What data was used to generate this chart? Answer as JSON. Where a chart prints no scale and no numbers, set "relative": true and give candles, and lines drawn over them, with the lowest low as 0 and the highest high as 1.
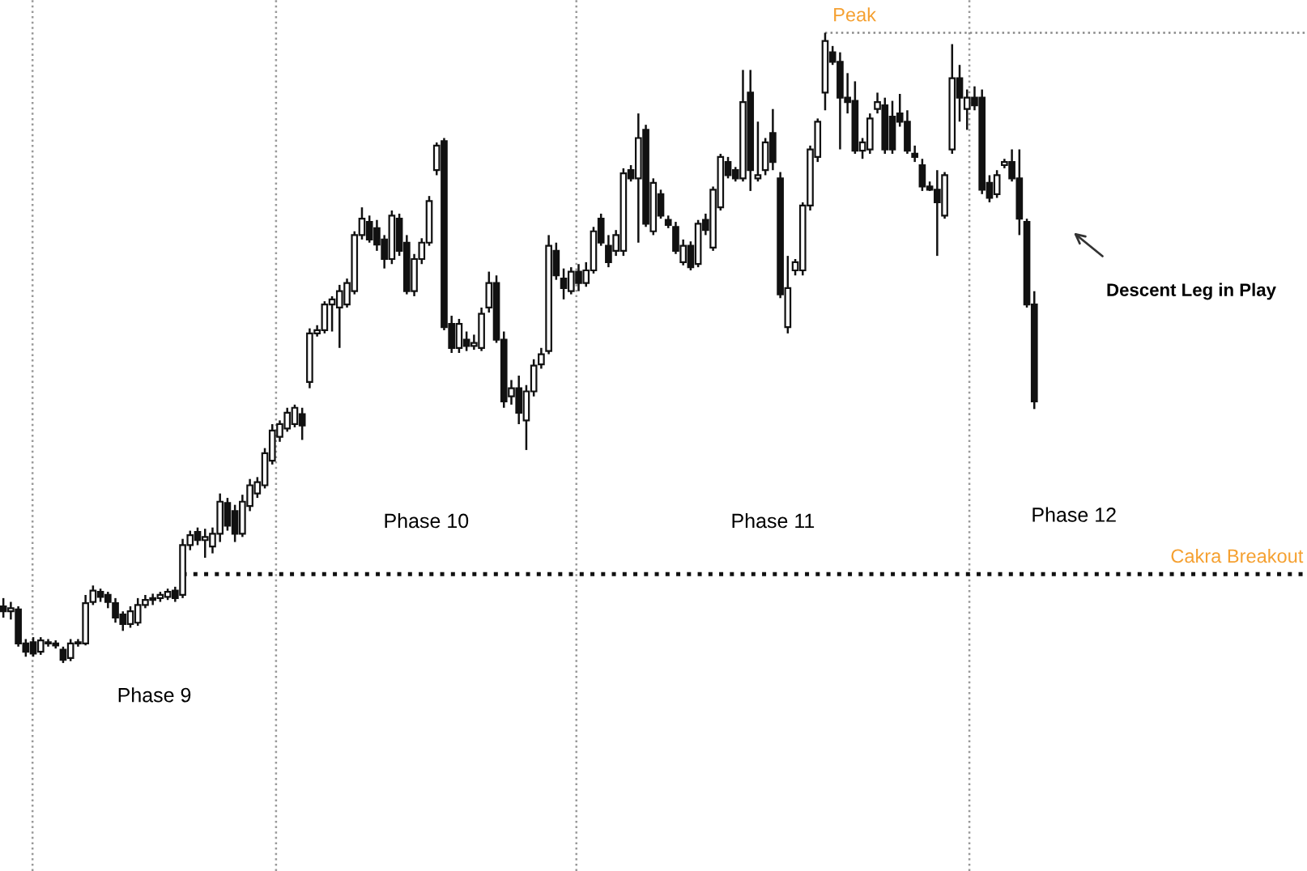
{
  "chart_data": {
    "type": "candlestick",
    "relative": true,
    "tick_labels": false,
    "grid": false,
    "legend": false,
    "categories": [
      null,
      null,
      null,
      null,
      null,
      null,
      null,
      null,
      null,
      null,
      null,
      null,
      null,
      null,
      null,
      null,
      null,
      null,
      null,
      null,
      null,
      null,
      null,
      null,
      null,
      null,
      null,
      null,
      null,
      null,
      null,
      null,
      null,
      null,
      null,
      null,
      null,
      null,
      null,
      null,
      null,
      null,
      null,
      null,
      null,
      null,
      null,
      null,
      null,
      null,
      null,
      null,
      null,
      null,
      null,
      null,
      null,
      null,
      null,
      null,
      null,
      null,
      null,
      null,
      null,
      null,
      null,
      null,
      null,
      null,
      null,
      null,
      null,
      null,
      null,
      null,
      null,
      null,
      null,
      null,
      null,
      null,
      null,
      null,
      null,
      null,
      null,
      null,
      null,
      null,
      null,
      null,
      null,
      null,
      null,
      null,
      null,
      null,
      null,
      null,
      null,
      null,
      null,
      null,
      null,
      null,
      null,
      null,
      null,
      null,
      null,
      null,
      null,
      null,
      null,
      null,
      null,
      null,
      null,
      null,
      null,
      null,
      null,
      null,
      null,
      null,
      null,
      null,
      null,
      null,
      null,
      null,
      null,
      null,
      null,
      null,
      null,
      null,
      null
    ],
    "ohlc": [
      [
        0.09,
        0.103,
        0.072,
        0.082
      ],
      [
        0.082,
        0.097,
        0.069,
        0.087
      ],
      [
        0.085,
        0.09,
        0.026,
        0.031
      ],
      [
        0.031,
        0.038,
        0.01,
        0.018
      ],
      [
        0.033,
        0.041,
        0.01,
        0.015
      ],
      [
        0.018,
        0.041,
        0.013,
        0.036
      ],
      [
        0.033,
        0.038,
        0.026,
        0.031
      ],
      [
        0.031,
        0.036,
        0.023,
        0.028
      ],
      [
        0.021,
        0.026,
        0.0,
        0.005
      ],
      [
        0.008,
        0.038,
        0.003,
        0.031
      ],
      [
        0.031,
        0.038,
        0.026,
        0.033
      ],
      [
        0.031,
        0.108,
        0.028,
        0.095
      ],
      [
        0.097,
        0.123,
        0.092,
        0.115
      ],
      [
        0.113,
        0.118,
        0.097,
        0.105
      ],
      [
        0.108,
        0.113,
        0.087,
        0.097
      ],
      [
        0.095,
        0.103,
        0.064,
        0.072
      ],
      [
        0.077,
        0.082,
        0.051,
        0.062
      ],
      [
        0.062,
        0.09,
        0.056,
        0.082
      ],
      [
        0.064,
        0.103,
        0.059,
        0.092
      ],
      [
        0.092,
        0.108,
        0.087,
        0.1
      ],
      [
        0.1,
        0.11,
        0.092,
        0.103
      ],
      [
        0.103,
        0.113,
        0.097,
        0.108
      ],
      [
        0.105,
        0.118,
        0.1,
        0.113
      ],
      [
        0.115,
        0.121,
        0.097,
        0.103
      ],
      [
        0.108,
        0.197,
        0.103,
        0.187
      ],
      [
        0.187,
        0.21,
        0.179,
        0.203
      ],
      [
        0.208,
        0.215,
        0.187,
        0.195
      ],
      [
        0.195,
        0.213,
        0.167,
        0.2
      ],
      [
        0.185,
        0.215,
        0.174,
        0.205
      ],
      [
        0.205,
        0.269,
        0.192,
        0.256
      ],
      [
        0.254,
        0.262,
        0.21,
        0.218
      ],
      [
        0.241,
        0.251,
        0.192,
        0.205
      ],
      [
        0.205,
        0.267,
        0.2,
        0.256
      ],
      [
        0.249,
        0.292,
        0.241,
        0.282
      ],
      [
        0.269,
        0.295,
        0.262,
        0.287
      ],
      [
        0.282,
        0.341,
        0.277,
        0.333
      ],
      [
        0.321,
        0.379,
        0.315,
        0.369
      ],
      [
        0.359,
        0.385,
        0.351,
        0.379
      ],
      [
        0.372,
        0.405,
        0.367,
        0.397
      ],
      [
        0.379,
        0.41,
        0.374,
        0.405
      ],
      [
        0.395,
        0.405,
        0.354,
        0.377
      ],
      [
        0.446,
        0.531,
        0.436,
        0.523
      ],
      [
        0.523,
        0.536,
        0.518,
        0.528
      ],
      [
        0.528,
        0.574,
        0.523,
        0.569
      ],
      [
        0.569,
        0.582,
        0.526,
        0.577
      ],
      [
        0.564,
        0.6,
        0.5,
        0.59
      ],
      [
        0.569,
        0.61,
        0.564,
        0.603
      ],
      [
        0.59,
        0.685,
        0.585,
        0.679
      ],
      [
        0.679,
        0.723,
        0.672,
        0.705
      ],
      [
        0.7,
        0.71,
        0.667,
        0.672
      ],
      [
        0.69,
        0.703,
        0.654,
        0.664
      ],
      [
        0.672,
        0.679,
        0.626,
        0.641
      ],
      [
        0.641,
        0.718,
        0.633,
        0.71
      ],
      [
        0.705,
        0.713,
        0.646,
        0.654
      ],
      [
        0.667,
        0.679,
        0.585,
        0.59
      ],
      [
        0.59,
        0.649,
        0.582,
        0.641
      ],
      [
        0.641,
        0.674,
        0.633,
        0.667
      ],
      [
        0.667,
        0.741,
        0.662,
        0.733
      ],
      [
        0.782,
        0.826,
        0.774,
        0.821
      ],
      [
        0.828,
        0.833,
        0.528,
        0.533
      ],
      [
        0.538,
        0.551,
        0.492,
        0.5
      ],
      [
        0.5,
        0.546,
        0.492,
        0.538
      ],
      [
        0.513,
        0.526,
        0.495,
        0.503
      ],
      [
        0.503,
        0.521,
        0.497,
        0.508
      ],
      [
        0.5,
        0.564,
        0.495,
        0.554
      ],
      [
        0.564,
        0.621,
        0.556,
        0.603
      ],
      [
        0.603,
        0.615,
        0.508,
        0.513
      ],
      [
        0.513,
        0.526,
        0.405,
        0.415
      ],
      [
        0.423,
        0.449,
        0.41,
        0.436
      ],
      [
        0.436,
        0.456,
        0.379,
        0.397
      ],
      [
        0.385,
        0.441,
        0.338,
        0.431
      ],
      [
        0.431,
        0.482,
        0.423,
        0.472
      ],
      [
        0.474,
        0.5,
        0.467,
        0.49
      ],
      [
        0.495,
        0.679,
        0.49,
        0.662
      ],
      [
        0.654,
        0.667,
        0.608,
        0.615
      ],
      [
        0.61,
        0.626,
        0.577,
        0.595
      ],
      [
        0.59,
        0.628,
        0.585,
        0.621
      ],
      [
        0.621,
        0.633,
        0.59,
        0.603
      ],
      [
        0.603,
        0.636,
        0.597,
        0.623
      ],
      [
        0.623,
        0.692,
        0.618,
        0.685
      ],
      [
        0.705,
        0.713,
        0.662,
        0.667
      ],
      [
        0.662,
        0.679,
        0.628,
        0.636
      ],
      [
        0.654,
        0.687,
        0.646,
        0.679
      ],
      [
        0.654,
        0.785,
        0.646,
        0.777
      ],
      [
        0.782,
        0.79,
        0.764,
        0.769
      ],
      [
        0.769,
        0.872,
        0.667,
        0.833
      ],
      [
        0.846,
        0.854,
        0.692,
        0.697
      ],
      [
        0.685,
        0.769,
        0.679,
        0.762
      ],
      [
        0.744,
        0.751,
        0.705,
        0.71
      ],
      [
        0.703,
        0.71,
        0.69,
        0.695
      ],
      [
        0.692,
        0.7,
        0.649,
        0.654
      ],
      [
        0.636,
        0.672,
        0.631,
        0.662
      ],
      [
        0.662,
        0.669,
        0.623,
        0.628
      ],
      [
        0.633,
        0.703,
        0.628,
        0.697
      ],
      [
        0.703,
        0.713,
        0.679,
        0.687
      ],
      [
        0.659,
        0.756,
        0.654,
        0.751
      ],
      [
        0.723,
        0.808,
        0.718,
        0.803
      ],
      [
        0.795,
        0.803,
        0.769,
        0.774
      ],
      [
        0.782,
        0.787,
        0.764,
        0.769
      ],
      [
        0.769,
        0.941,
        0.764,
        0.89
      ],
      [
        0.905,
        0.941,
        0.749,
        0.782
      ],
      [
        0.769,
        0.859,
        0.764,
        0.774
      ],
      [
        0.782,
        0.833,
        0.774,
        0.826
      ],
      [
        0.841,
        0.879,
        0.782,
        0.795
      ],
      [
        0.769,
        0.779,
        0.579,
        0.585
      ],
      [
        0.533,
        0.646,
        0.523,
        0.595
      ],
      [
        0.623,
        0.641,
        0.615,
        0.636
      ],
      [
        0.623,
        0.731,
        0.615,
        0.726
      ],
      [
        0.726,
        0.821,
        0.718,
        0.815
      ],
      [
        0.803,
        0.864,
        0.795,
        0.859
      ],
      [
        0.905,
        1.0,
        0.877,
        0.987
      ],
      [
        0.969,
        0.979,
        0.949,
        0.954
      ],
      [
        0.954,
        0.969,
        0.815,
        0.897
      ],
      [
        0.897,
        0.936,
        0.872,
        0.89
      ],
      [
        0.892,
        0.923,
        0.808,
        0.813
      ],
      [
        0.813,
        0.833,
        0.8,
        0.826
      ],
      [
        0.815,
        0.872,
        0.808,
        0.864
      ],
      [
        0.879,
        0.905,
        0.872,
        0.89
      ],
      [
        0.885,
        0.897,
        0.808,
        0.815
      ],
      [
        0.867,
        0.892,
        0.808,
        0.815
      ],
      [
        0.872,
        0.903,
        0.851,
        0.859
      ],
      [
        0.859,
        0.877,
        0.808,
        0.813
      ],
      [
        0.808,
        0.821,
        0.795,
        0.803
      ],
      [
        0.79,
        0.8,
        0.749,
        0.756
      ],
      [
        0.756,
        0.764,
        0.749,
        0.751
      ],
      [
        0.751,
        0.782,
        0.646,
        0.731
      ],
      [
        0.71,
        0.779,
        0.705,
        0.774
      ],
      [
        0.815,
        0.982,
        0.808,
        0.928
      ],
      [
        0.928,
        0.949,
        0.859,
        0.897
      ],
      [
        0.879,
        0.91,
        0.846,
        0.897
      ],
      [
        0.897,
        0.915,
        0.877,
        0.885
      ],
      [
        0.897,
        0.91,
        0.744,
        0.751
      ],
      [
        0.762,
        0.774,
        0.731,
        0.738
      ],
      [
        0.744,
        0.782,
        0.738,
        0.774
      ],
      [
        0.79,
        0.8,
        0.785,
        0.795
      ],
      [
        0.795,
        0.815,
        0.764,
        0.769
      ],
      [
        0.769,
        0.815,
        0.679,
        0.705
      ],
      [
        0.7,
        0.705,
        0.564,
        0.569
      ],
      [
        0.569,
        0.59,
        0.403,
        0.415
      ]
    ],
    "ref_lines": [
      {
        "axis": "y",
        "value": 1.0,
        "label": "Peak",
        "color": "#888888",
        "line_style": "dotted"
      },
      {
        "axis": "y",
        "value": 0.141,
        "label": "Cakra Breakout",
        "color": "#111111",
        "line_style": "dotted"
      }
    ],
    "annotations": [
      "Phase 9",
      "Phase 10",
      "Phase 11",
      "Phase 12",
      "Descent Leg in Play"
    ]
  }
}
